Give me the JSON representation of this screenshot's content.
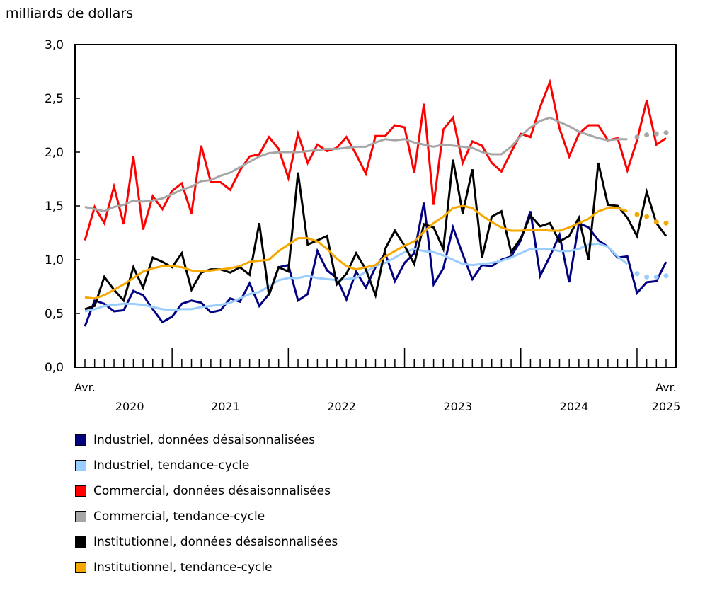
{
  "chart_data": {
    "type": "line",
    "ylabel": "milliards de dollars",
    "ylim": [
      0,
      3.0
    ],
    "yticks": [
      "0,0",
      "0,5",
      "1,0",
      "1,5",
      "2,0",
      "2,5",
      "3,0"
    ],
    "x_start": "2020-04",
    "x_end": "2025-04",
    "x_labels": {
      "start_month": "Avr.",
      "end_month": "Avr.",
      "years": [
        "2020",
        "2021",
        "2022",
        "2023",
        "2024",
        "2025"
      ]
    },
    "dotted_from": "2025-01",
    "series": [
      {
        "name": "Industriel, données désaisonnalisées",
        "color": "#000080",
        "dotted": false,
        "values": [
          0.38,
          0.62,
          0.59,
          0.52,
          0.53,
          0.71,
          0.67,
          0.54,
          0.42,
          0.47,
          0.59,
          0.62,
          0.6,
          0.51,
          0.53,
          0.64,
          0.61,
          0.78,
          0.57,
          0.68,
          0.93,
          0.95,
          0.62,
          0.68,
          1.08,
          0.9,
          0.83,
          0.63,
          0.89,
          0.74,
          0.93,
          1.06,
          0.8,
          0.97,
          1.06,
          1.53,
          0.77,
          0.92,
          1.3,
          1.05,
          0.82,
          0.95,
          0.94,
          1.0,
          1.03,
          1.18,
          1.45,
          0.85,
          1.03,
          1.23,
          0.79,
          1.34,
          1.3,
          1.18,
          1.12,
          1.02,
          1.03,
          0.69,
          0.79,
          0.8,
          0.98
        ]
      },
      {
        "name": "Industriel, tendance-cycle",
        "color": "#99CCFF",
        "dotted": true,
        "values": [
          0.52,
          0.54,
          0.57,
          0.58,
          0.59,
          0.59,
          0.58,
          0.56,
          0.54,
          0.53,
          0.54,
          0.54,
          0.56,
          0.57,
          0.58,
          0.6,
          0.64,
          0.68,
          0.7,
          0.75,
          0.81,
          0.83,
          0.83,
          0.85,
          0.83,
          0.82,
          0.81,
          0.82,
          0.83,
          0.89,
          0.94,
          0.97,
          1.02,
          1.07,
          1.1,
          1.08,
          1.07,
          1.04,
          1.0,
          0.96,
          0.95,
          0.96,
          0.97,
          0.99,
          1.02,
          1.06,
          1.1,
          1.1,
          1.1,
          1.08,
          1.08,
          1.1,
          1.14,
          1.15,
          1.12,
          1.03,
          0.96,
          0.87,
          0.84,
          0.84,
          0.85
        ]
      },
      {
        "name": "Commercial, données désaisonnalisées",
        "color": "#FF0000",
        "dotted": false,
        "values": [
          1.18,
          1.49,
          1.34,
          1.68,
          1.33,
          1.96,
          1.28,
          1.59,
          1.47,
          1.64,
          1.71,
          1.43,
          2.06,
          1.72,
          1.72,
          1.65,
          1.83,
          1.96,
          1.98,
          2.14,
          2.03,
          1.76,
          2.17,
          1.9,
          2.07,
          2.01,
          2.04,
          2.14,
          1.98,
          1.8,
          2.15,
          2.15,
          2.25,
          2.23,
          1.81,
          2.45,
          1.51,
          2.21,
          2.32,
          1.9,
          2.1,
          2.06,
          1.9,
          1.82,
          2.0,
          2.17,
          2.14,
          2.42,
          2.65,
          2.22,
          1.96,
          2.17,
          2.25,
          2.25,
          2.11,
          2.13,
          1.83,
          2.11,
          2.48,
          2.07,
          2.13
        ]
      },
      {
        "name": "Commercial, tendance-cycle",
        "color": "#A6A6A6",
        "dotted": true,
        "values": [
          1.49,
          1.47,
          1.45,
          1.49,
          1.51,
          1.55,
          1.54,
          1.55,
          1.57,
          1.61,
          1.65,
          1.68,
          1.73,
          1.74,
          1.78,
          1.81,
          1.86,
          1.91,
          1.96,
          1.99,
          2.0,
          2.0,
          2.0,
          2.01,
          2.02,
          2.03,
          2.03,
          2.04,
          2.05,
          2.05,
          2.09,
          2.12,
          2.11,
          2.12,
          2.09,
          2.07,
          2.05,
          2.07,
          2.06,
          2.05,
          2.04,
          2.0,
          1.98,
          1.98,
          2.05,
          2.15,
          2.23,
          2.29,
          2.32,
          2.28,
          2.24,
          2.19,
          2.16,
          2.13,
          2.11,
          2.12,
          2.12,
          2.14,
          2.16,
          2.17,
          2.18
        ]
      },
      {
        "name": "Institutionnel, données désaisonnalisées",
        "color": "#000000",
        "dotted": false,
        "values": [
          0.54,
          0.57,
          0.84,
          0.72,
          0.62,
          0.93,
          0.74,
          1.02,
          0.98,
          0.93,
          1.06,
          0.72,
          0.88,
          0.91,
          0.91,
          0.88,
          0.93,
          0.86,
          1.34,
          0.67,
          0.93,
          0.89,
          1.81,
          1.14,
          1.18,
          1.22,
          0.77,
          0.87,
          1.06,
          0.91,
          0.67,
          1.1,
          1.27,
          1.13,
          0.96,
          1.33,
          1.3,
          1.1,
          1.93,
          1.43,
          1.84,
          1.02,
          1.4,
          1.45,
          1.07,
          1.2,
          1.41,
          1.31,
          1.34,
          1.17,
          1.22,
          1.39,
          1.0,
          1.9,
          1.51,
          1.5,
          1.39,
          1.22,
          1.63,
          1.34,
          1.22
        ]
      },
      {
        "name": "Institutionnel, tendance-cycle",
        "color": "#F5A800",
        "dotted": true,
        "values": [
          0.65,
          0.64,
          0.67,
          0.72,
          0.77,
          0.83,
          0.89,
          0.92,
          0.94,
          0.94,
          0.93,
          0.9,
          0.89,
          0.9,
          0.91,
          0.92,
          0.94,
          0.98,
          0.99,
          1.0,
          1.08,
          1.14,
          1.2,
          1.2,
          1.17,
          1.1,
          1.01,
          0.94,
          0.91,
          0.93,
          0.95,
          1.03,
          1.08,
          1.13,
          1.17,
          1.26,
          1.34,
          1.4,
          1.48,
          1.5,
          1.48,
          1.41,
          1.35,
          1.3,
          1.27,
          1.27,
          1.28,
          1.28,
          1.27,
          1.27,
          1.3,
          1.34,
          1.38,
          1.45,
          1.48,
          1.48,
          1.45,
          1.42,
          1.4,
          1.35,
          1.34
        ]
      }
    ]
  }
}
